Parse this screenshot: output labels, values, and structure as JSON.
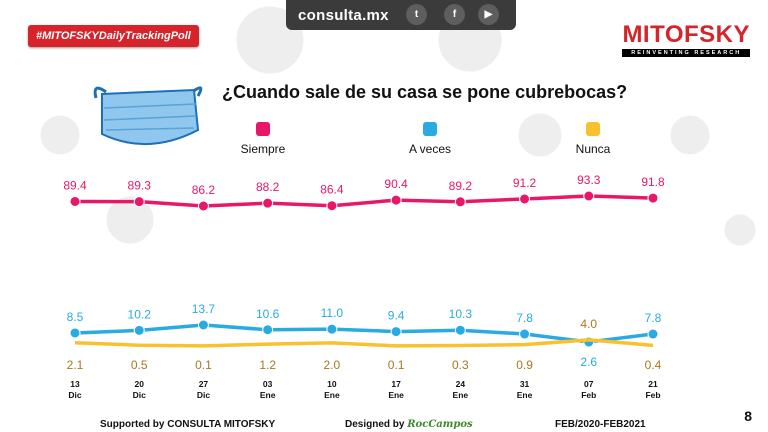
{
  "header": {
    "site": "consulta.mx",
    "hashtag": "#MITOFSKYDailyTrackingPoll",
    "brand": "MITOFSKY",
    "brand_tagline": "REINVENTING RESEARCH",
    "social": [
      "twitter-icon",
      "facebook-icon",
      "youtube-icon"
    ]
  },
  "chart_data": {
    "type": "line",
    "title": "¿Cuando sale de su casa se pone cubrebocas?",
    "categories": [
      "13 Dic",
      "20 Dic",
      "27 Dic",
      "03 Ene",
      "10 Ene",
      "17 Ene",
      "24 Ene",
      "31 Ene",
      "07 Feb",
      "21 Feb"
    ],
    "category_days": [
      "13",
      "20",
      "27",
      "03",
      "10",
      "17",
      "24",
      "31",
      "07",
      "21"
    ],
    "category_months": [
      "Dic",
      "Dic",
      "Dic",
      "Ene",
      "Ene",
      "Ene",
      "Ene",
      "Ene",
      "Feb",
      "Feb"
    ],
    "series": [
      {
        "name": "Siempre",
        "color": "#e8176a",
        "values": [
          89.4,
          89.3,
          86.2,
          88.2,
          86.4,
          90.4,
          89.2,
          91.2,
          93.3,
          91.8
        ]
      },
      {
        "name": "A veces",
        "color": "#29abe2",
        "values": [
          8.5,
          10.2,
          13.7,
          10.6,
          11.0,
          9.4,
          10.3,
          7.8,
          2.6,
          7.8
        ]
      },
      {
        "name": "Nunca",
        "color": "#fbc02d",
        "label_color": "#a8781a",
        "values": [
          2.1,
          0.5,
          0.1,
          1.2,
          2.0,
          0.1,
          0.3,
          0.9,
          4.0,
          0.4
        ]
      }
    ],
    "xlabel": "",
    "ylabel": ""
  },
  "footer": {
    "supported": "Supported by   CONSULTA   MITOFSKY",
    "designed": "Designed by",
    "designer": "RocCampos",
    "period": "FEB/2020-FEB2021",
    "page": "8"
  }
}
